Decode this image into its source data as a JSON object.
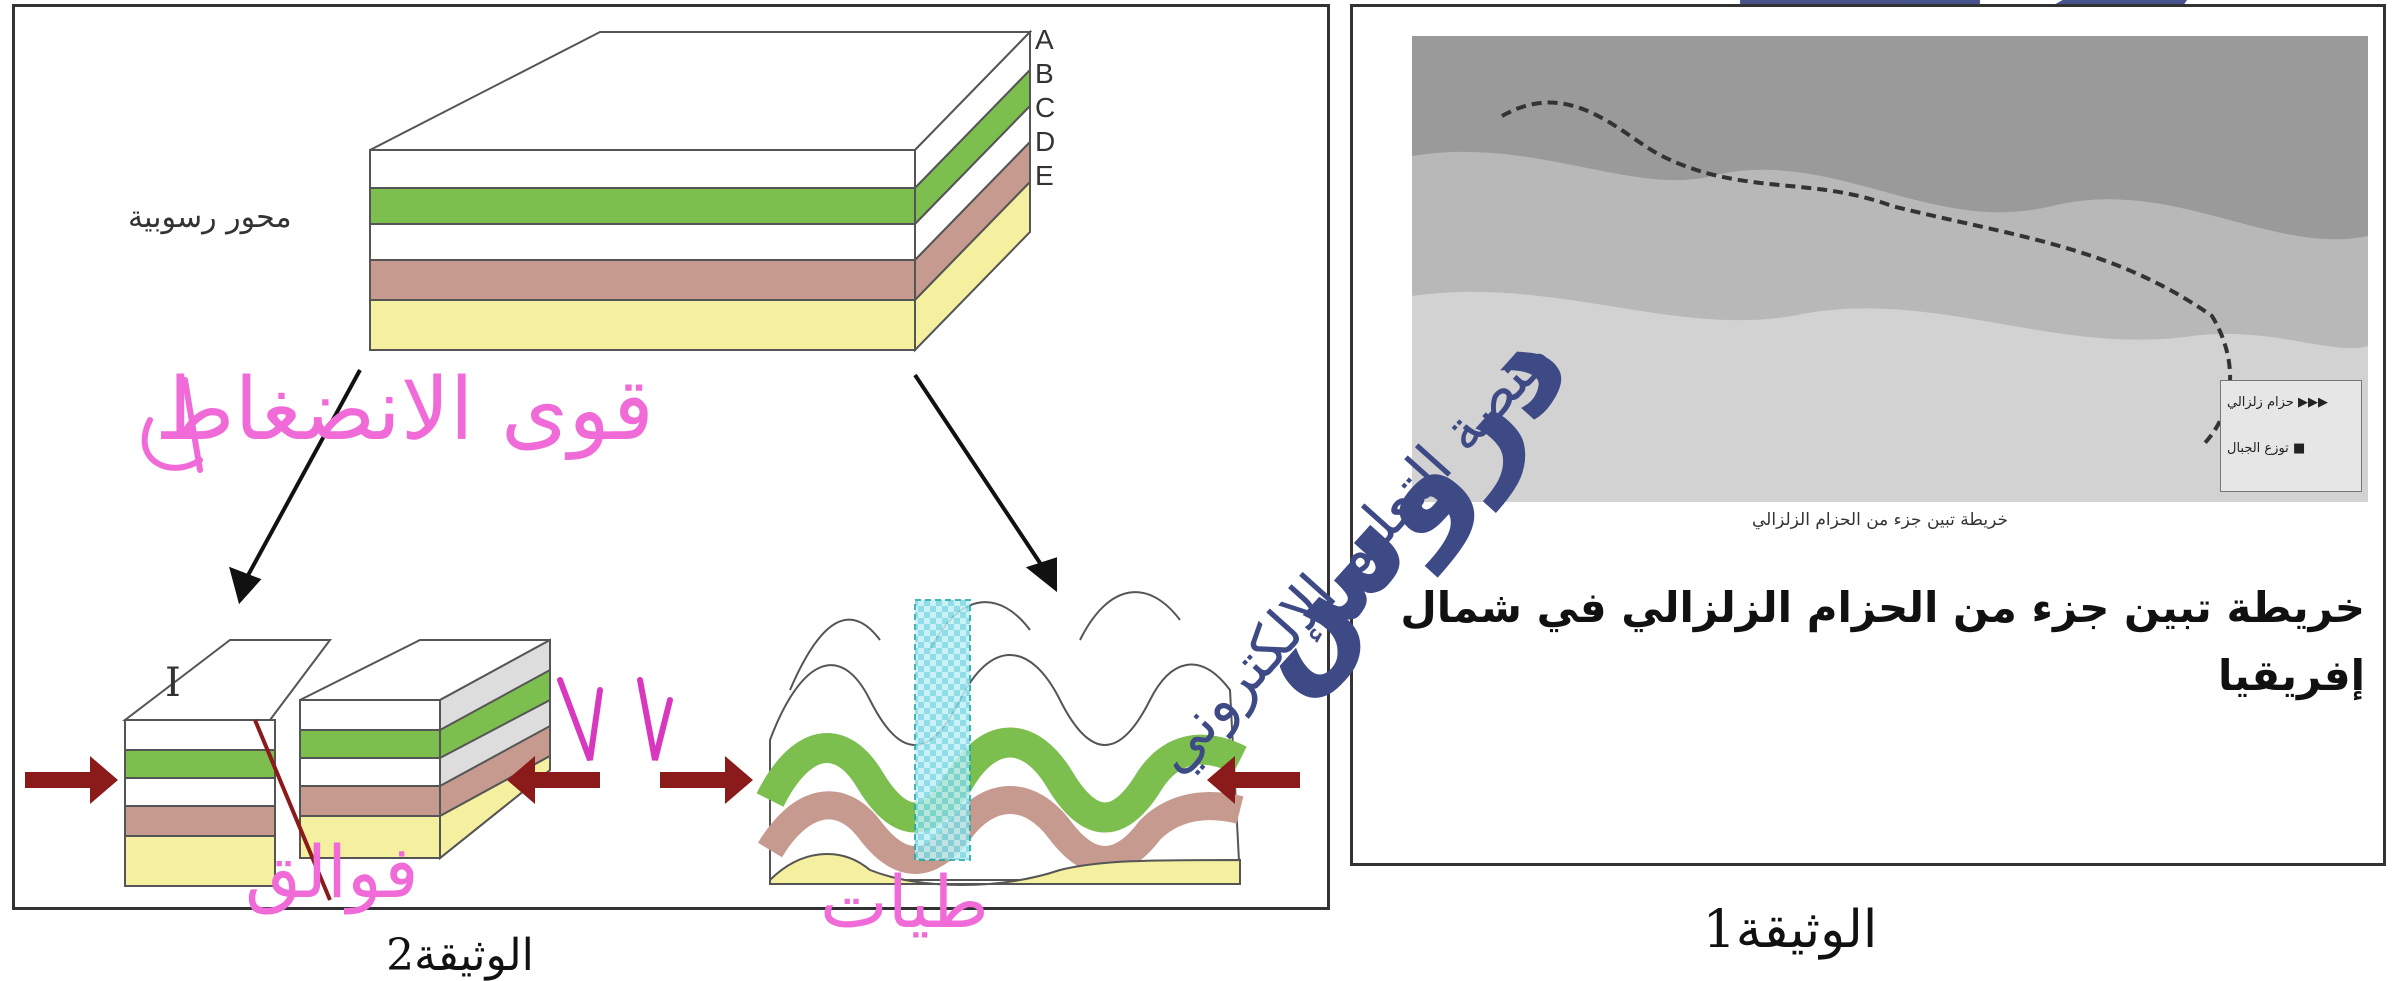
{
  "doc_left": {
    "title": "الوثيقة2",
    "sediment_label": "محور رسوبية",
    "layer_letters": [
      "A",
      "B",
      "C",
      "D",
      "E"
    ],
    "marker_roman": "I"
  },
  "doc_right": {
    "title": "الوثيقة1",
    "map_small_caption": "خريطة تبين جزء من الحزام الزلزالي",
    "main_caption": "خريطة تبين جزء من الحزام الزلزالي في شمال إفريقيا",
    "legend": [
      {
        "label": "حزام زلزالي",
        "icon": "seismic-belt-triangles-icon"
      },
      {
        "label": "توزع الجبال",
        "icon": "mountains-square-icon"
      }
    ]
  },
  "handwriting": {
    "compression_forces": "قوى الانضغاط",
    "faults": "فوالق",
    "folds": "طيات"
  },
  "watermark": {
    "brand": "دروس",
    "subtitle": "منصة التعليم الإلكتروني"
  },
  "colors": {
    "green": "#7dbf4f",
    "brown": "#c69a8e",
    "yellow": "#f5f0a0",
    "arrow": "#8b1a1a",
    "pink_pen": "#f06ad8",
    "watermark_blue": "#3e4a86",
    "map_gray": "#9a9a9a",
    "circle_magenta": "#c0187a"
  }
}
